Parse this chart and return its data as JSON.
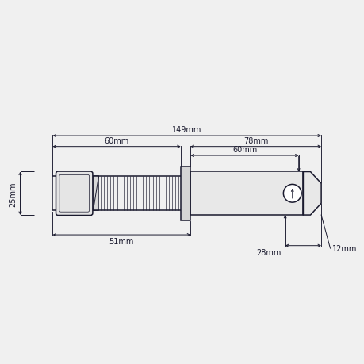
{
  "bg_color": "#f0f0f0",
  "line_color": "#1a1a2e",
  "fig_width": 4.6,
  "fig_height": 4.6,
  "dpi": 100,
  "annotations": {
    "total_149mm": "149mm",
    "dim_60mm_thread": "60mm",
    "dim_78mm": "78mm",
    "dim_60mm_shaft": "60mm",
    "dim_51mm": "51mm",
    "dim_28mm": "28mm",
    "dim_12mm": "12mm",
    "dim_25mm": "25mm"
  },
  "xlim": [
    -28,
    170
  ],
  "ylim": [
    -42,
    55
  ]
}
